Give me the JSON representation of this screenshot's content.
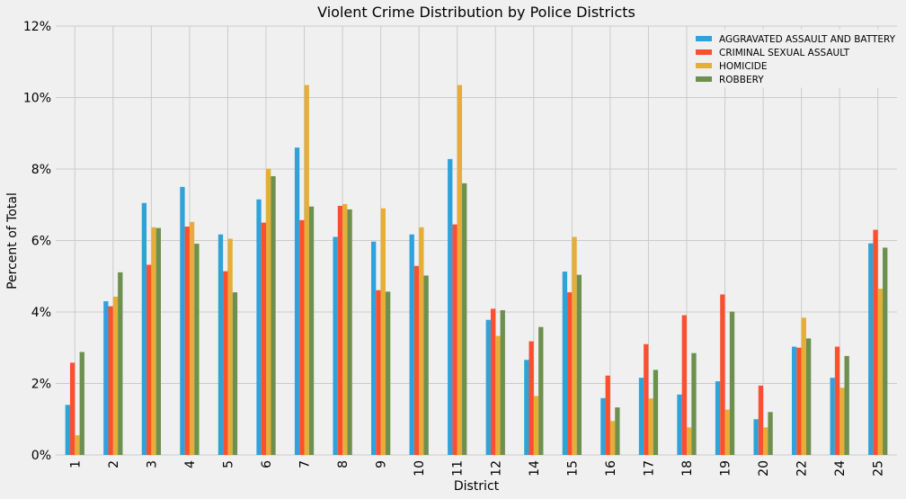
{
  "chart_data": {
    "type": "bar",
    "title": "Violent Crime Distribution by Police Districts",
    "xlabel": "District",
    "ylabel": "Percent of Total",
    "ylim": [
      0,
      12
    ],
    "y_tick_labels": [
      "0%",
      "2%",
      "4%",
      "6%",
      "8%",
      "10%",
      "12%"
    ],
    "grid": true,
    "legend_position": "top-right",
    "categories": [
      "1",
      "2",
      "3",
      "4",
      "5",
      "6",
      "7",
      "8",
      "9",
      "10",
      "11",
      "12",
      "14",
      "15",
      "16",
      "17",
      "18",
      "19",
      "20",
      "22",
      "24",
      "25"
    ],
    "series": [
      {
        "name": "AGGRAVATED ASSAULT AND BATTERY",
        "color": "#30a2da",
        "values": [
          1.4,
          4.3,
          7.05,
          7.5,
          6.17,
          7.15,
          8.6,
          6.1,
          5.97,
          6.17,
          8.28,
          3.78,
          2.66,
          5.13,
          1.59,
          2.16,
          1.69,
          2.06,
          1.0,
          3.03,
          2.16,
          5.92
        ]
      },
      {
        "name": "CRIMINAL SEXUAL ASSAULT",
        "color": "#fc4f30",
        "values": [
          2.58,
          4.16,
          5.32,
          6.39,
          5.14,
          6.5,
          6.57,
          6.97,
          4.61,
          5.29,
          6.45,
          4.09,
          3.18,
          4.55,
          2.22,
          3.1,
          3.91,
          4.49,
          1.94,
          3.0,
          3.03,
          6.3
        ]
      },
      {
        "name": "HOMICIDE",
        "color": "#e5ae38",
        "values": [
          0.55,
          4.43,
          6.37,
          6.52,
          6.05,
          8.01,
          10.35,
          7.02,
          6.9,
          6.37,
          10.35,
          3.33,
          1.65,
          6.1,
          0.95,
          1.58,
          0.77,
          1.27,
          0.77,
          3.84,
          1.88,
          4.65
        ]
      },
      {
        "name": "ROBBERY",
        "color": "#6d904f",
        "values": [
          2.88,
          5.11,
          6.35,
          5.91,
          4.55,
          7.8,
          6.95,
          6.87,
          4.57,
          5.02,
          7.6,
          4.05,
          3.58,
          5.04,
          1.33,
          2.38,
          2.85,
          4.01,
          1.2,
          3.26,
          2.77,
          5.8
        ]
      }
    ]
  }
}
